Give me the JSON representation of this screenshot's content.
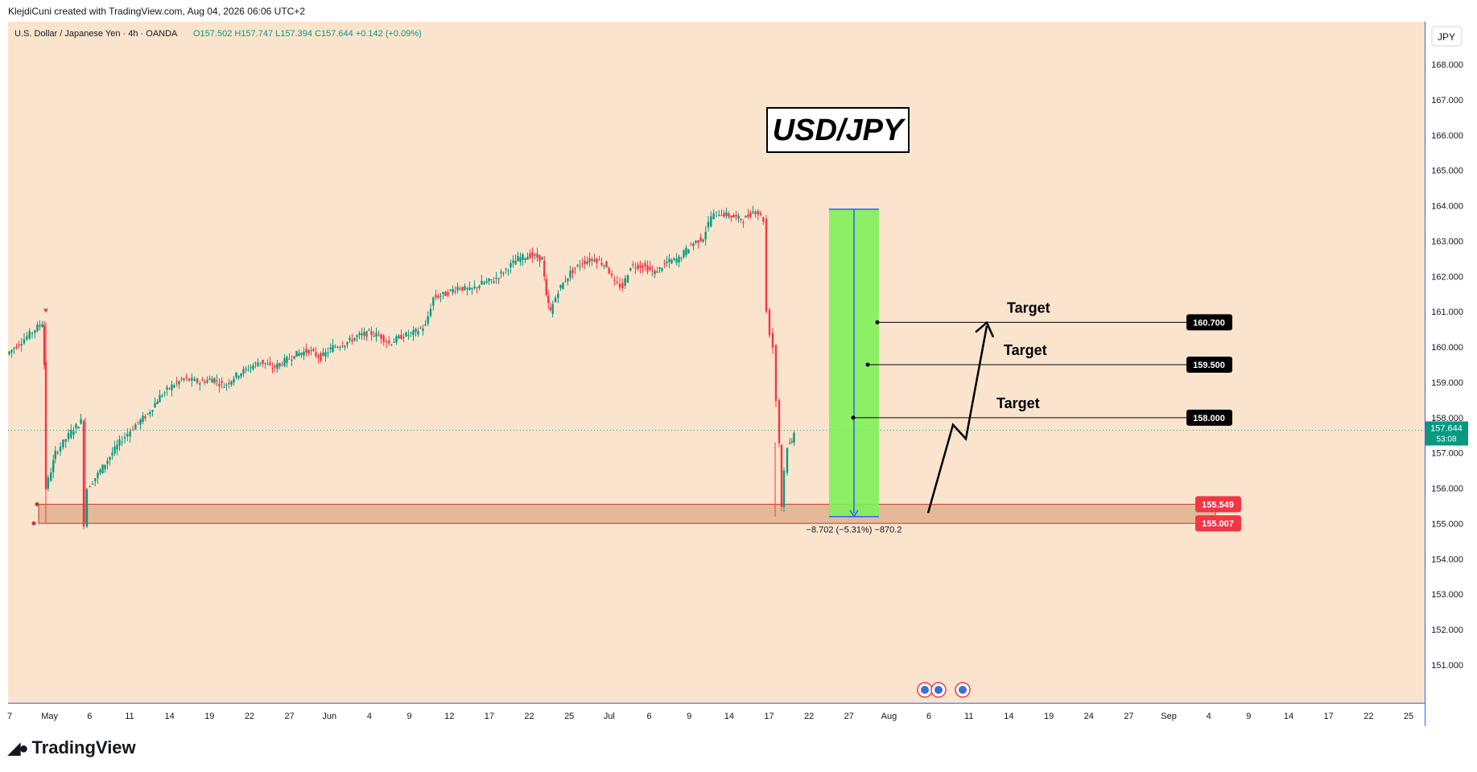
{
  "header": {
    "credit": "KlejdiCuni created with TradingView.com, Aug 04, 2026 06:06 UTC+2",
    "symbol": "U.S. Dollar / Japanese Yen · 4h · OANDA",
    "ohlc": "O157.502  H157.747  L157.394  C157.644  +0.142 (+0.09%)"
  },
  "title_box": "USD/JPY",
  "currency_button": "JPY",
  "footer_logo": "TradingView",
  "chart_data": {
    "type": "candlestick",
    "interval": "4h",
    "ylim": [
      150,
      168.5
    ],
    "y_ticks": [
      "151.000",
      "152.000",
      "153.000",
      "154.000",
      "155.000",
      "156.000",
      "157.000",
      "158.000",
      "159.000",
      "160.000",
      "161.000",
      "162.000",
      "163.000",
      "164.000",
      "165.000",
      "166.000",
      "167.000",
      "168.000"
    ],
    "x_ticks": [
      "7",
      "May",
      "6",
      "11",
      "14",
      "19",
      "22",
      "27",
      "Jun",
      "4",
      "9",
      "12",
      "17",
      "22",
      "25",
      "Jul",
      "6",
      "9",
      "14",
      "17",
      "22",
      "27",
      "Aug",
      "6",
      "11",
      "14",
      "19",
      "24",
      "27",
      "Sep",
      "4",
      "9",
      "14",
      "17",
      "22",
      "25"
    ],
    "price_path": [
      [
        0,
        159.8
      ],
      [
        15,
        160.1
      ],
      [
        35,
        160.5
      ],
      [
        44,
        160.7
      ],
      [
        46,
        159.5
      ],
      [
        48,
        156.0
      ],
      [
        55,
        156.5
      ],
      [
        60,
        157.0
      ],
      [
        70,
        157.3
      ],
      [
        80,
        157.6
      ],
      [
        92,
        157.9
      ],
      [
        96,
        155.0
      ],
      [
        100,
        156.0
      ],
      [
        110,
        156.3
      ],
      [
        125,
        156.8
      ],
      [
        140,
        157.3
      ],
      [
        160,
        157.8
      ],
      [
        175,
        158.1
      ],
      [
        190,
        158.6
      ],
      [
        205,
        158.9
      ],
      [
        220,
        159.1
      ],
      [
        240,
        159.0
      ],
      [
        255,
        159.1
      ],
      [
        270,
        158.9
      ],
      [
        285,
        159.2
      ],
      [
        300,
        159.4
      ],
      [
        315,
        159.6
      ],
      [
        330,
        159.4
      ],
      [
        345,
        159.6
      ],
      [
        360,
        159.8
      ],
      [
        375,
        159.9
      ],
      [
        390,
        159.7
      ],
      [
        405,
        160.0
      ],
      [
        420,
        160.1
      ],
      [
        435,
        160.3
      ],
      [
        450,
        160.4
      ],
      [
        465,
        160.3
      ],
      [
        475,
        160.1
      ],
      [
        490,
        160.3
      ],
      [
        505,
        160.4
      ],
      [
        520,
        160.6
      ],
      [
        530,
        161.4
      ],
      [
        545,
        161.5
      ],
      [
        560,
        161.7
      ],
      [
        575,
        161.6
      ],
      [
        590,
        161.8
      ],
      [
        605,
        161.9
      ],
      [
        620,
        162.2
      ],
      [
        635,
        162.5
      ],
      [
        650,
        162.6
      ],
      [
        665,
        162.5
      ],
      [
        670,
        161.4
      ],
      [
        675,
        161.0
      ],
      [
        685,
        161.6
      ],
      [
        700,
        162.1
      ],
      [
        715,
        162.4
      ],
      [
        730,
        162.5
      ],
      [
        745,
        162.3
      ],
      [
        755,
        161.8
      ],
      [
        765,
        161.7
      ],
      [
        775,
        162.3
      ],
      [
        790,
        162.3
      ],
      [
        805,
        162.1
      ],
      [
        820,
        162.4
      ],
      [
        835,
        162.5
      ],
      [
        850,
        162.9
      ],
      [
        865,
        163.1
      ],
      [
        875,
        163.7
      ],
      [
        885,
        163.8
      ],
      [
        900,
        163.7
      ],
      [
        915,
        163.6
      ],
      [
        930,
        163.9
      ],
      [
        940,
        163.6
      ],
      [
        944,
        161.0
      ],
      [
        948,
        160.4
      ],
      [
        952,
        160.0
      ],
      [
        956,
        158.5
      ],
      [
        960,
        157.3
      ],
      [
        962,
        155.5
      ],
      [
        966,
        156.5
      ],
      [
        970,
        157.2
      ],
      [
        975,
        157.3
      ],
      [
        978,
        157.64
      ]
    ],
    "last_price": "157.644",
    "countdown": "53:08",
    "support_zone": {
      "upper": 155.549,
      "lower": 155.007,
      "labels": [
        "155.549",
        "155.007"
      ]
    },
    "targets": [
      {
        "label": "Target",
        "price": 158.0,
        "price_label": "158.000"
      },
      {
        "label": "Target",
        "price": 159.5,
        "price_label": "159.500"
      },
      {
        "label": "Target",
        "price": 160.7,
        "price_label": "160.700"
      }
    ],
    "measure": {
      "text": "−8.702 (−5.31%) −870.2",
      "from": 163.9,
      "to": 155.2
    },
    "projection_path": [
      [
        985,
        155.3
      ],
      [
        1016,
        157.8
      ],
      [
        1032,
        157.4
      ],
      [
        1058,
        160.6
      ]
    ],
    "colors": {
      "background": "#fbe4cd",
      "up": "#089981",
      "down": "#f23645",
      "zone_fill": "#e3b99a",
      "measure_fill": "#7ff05a",
      "axis_accent": "#2962ff",
      "label_dark": "#000000",
      "label_red": "#f23645",
      "last_price": "#089981"
    }
  }
}
